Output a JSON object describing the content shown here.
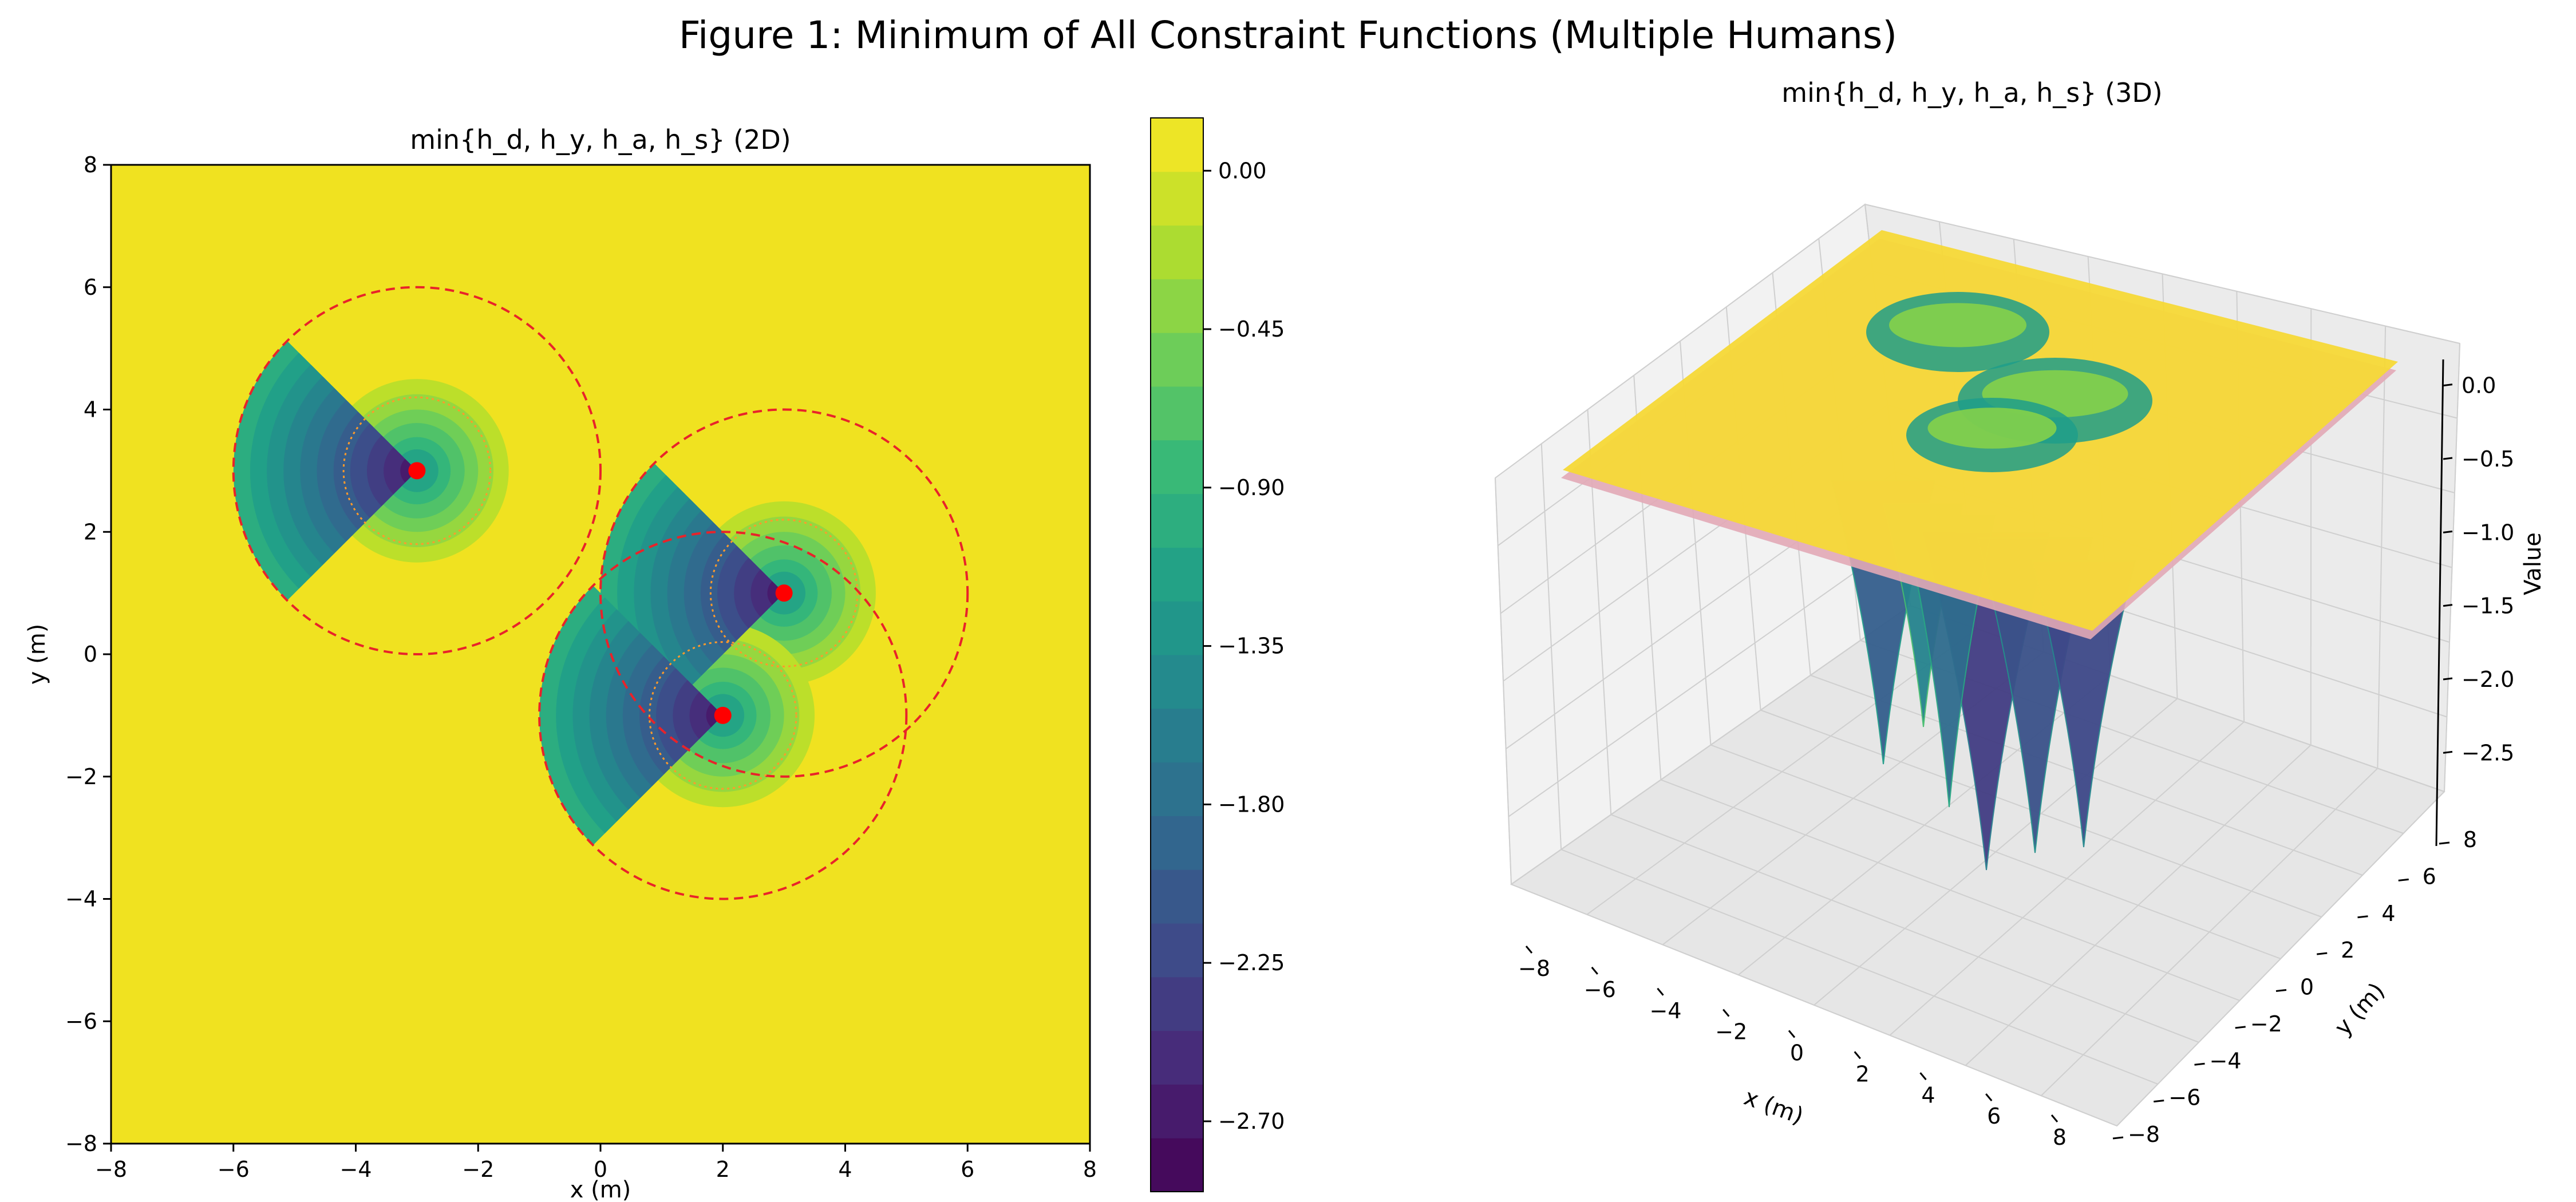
{
  "figure_title": "Figure 1: Minimum of All Constraint Functions (Multiple Humans)",
  "colors": {
    "plateau": "#f0e220",
    "marker": "#ff0000",
    "circle": "#e8232a",
    "inner_dotted": "#ff9a2a",
    "viridis_stops": [
      "#440154",
      "#482878",
      "#3e4a89",
      "#31688e",
      "#26828e",
      "#1f9e89",
      "#35b779",
      "#6ece58",
      "#b5de2b",
      "#fde725"
    ]
  },
  "chart_data": [
    {
      "type": "heatmap",
      "title": "min{h_d, h_y, h_a, h_s} (2D)",
      "xlabel": "x (m)",
      "ylabel": "y (m)",
      "xlim": [
        -8,
        8
      ],
      "ylim": [
        -8,
        8
      ],
      "xticks": [
        "−8",
        "−6",
        "−4",
        "−2",
        "0",
        "2",
        "4",
        "6",
        "8"
      ],
      "yticks": [
        "−8",
        "−6",
        "−4",
        "−2",
        "0",
        "2",
        "4",
        "6",
        "8"
      ],
      "humans": [
        {
          "x": -3,
          "y": 3,
          "heading_deg": 180
        },
        {
          "x": 3,
          "y": 1,
          "heading_deg": 180
        },
        {
          "x": 2,
          "y": -1,
          "heading_deg": 180
        }
      ],
      "influence_radius": 3,
      "inner_radius": 1.2,
      "colorbar": {
        "min": -2.9,
        "max": 0.15,
        "ticks": [
          "0.00",
          "−0.45",
          "−0.90",
          "−1.35",
          "−1.80",
          "−2.25",
          "−2.70"
        ],
        "tick_values": [
          0.0,
          -0.45,
          -0.9,
          -1.35,
          -1.8,
          -2.25,
          -2.7
        ]
      }
    },
    {
      "type": "area",
      "title": "min{h_d, h_y, h_a, h_s} (3D)",
      "xlabel": "x (m)",
      "ylabel": "y (m)",
      "zlabel": "Value",
      "xlim": [
        -8,
        8
      ],
      "ylim": [
        -8,
        8
      ],
      "zlim": [
        -2.9,
        0.1
      ],
      "xticks": [
        "−8",
        "−6",
        "−4",
        "−2",
        "0",
        "2",
        "4",
        "6",
        "8"
      ],
      "yticks": [
        "−8",
        "−6",
        "−4",
        "−2",
        "0",
        "2",
        "4",
        "6",
        "8"
      ],
      "zticks": [
        "0.0",
        "−0.5",
        "−1.0",
        "−1.5",
        "−2.0",
        "−2.5"
      ],
      "z_tick_values": [
        0.0,
        -0.5,
        -1.0,
        -1.5,
        -2.0,
        -2.5
      ]
    }
  ]
}
